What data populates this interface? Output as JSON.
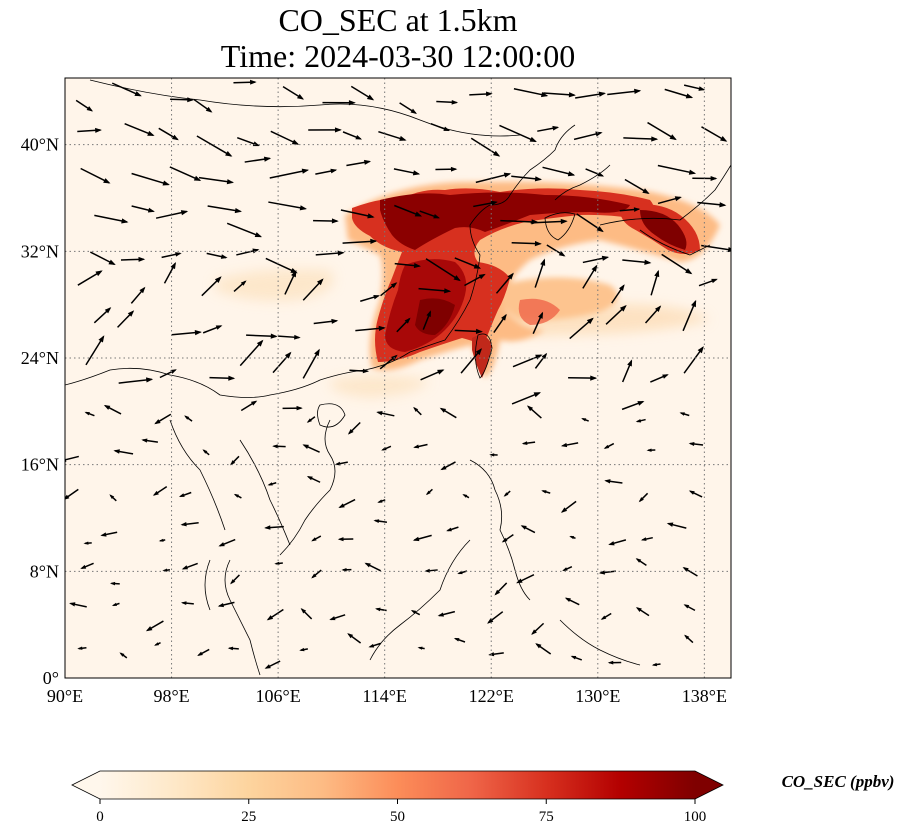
{
  "title": {
    "line1": "CO_SEC at 1.5km",
    "line2": "Time: 2024-03-30 12:00:00"
  },
  "map": {
    "lon_range": [
      90,
      140
    ],
    "lat_range": [
      0,
      45
    ],
    "lon_ticks": [
      90,
      98,
      106,
      114,
      122,
      130,
      138
    ],
    "lat_ticks": [
      0,
      8,
      16,
      24,
      32,
      40
    ],
    "lon_tick_labels": [
      "90°E",
      "98°E",
      "106°E",
      "114°E",
      "122°E",
      "130°E",
      "138°E"
    ],
    "lat_tick_labels": [
      "0°",
      "8°N",
      "16°N",
      "24°N",
      "32°N",
      "40°N"
    ],
    "gridlines": "dotted",
    "background_color": "#fff5ea",
    "coastline_color": "#000000"
  },
  "colorbar": {
    "label": "CO_SEC (ppbv)",
    "colormap": "OrRd",
    "range": [
      0,
      100
    ],
    "ticks": [
      0,
      25,
      50,
      75,
      100
    ],
    "tick_labels": [
      "0",
      "25",
      "50",
      "75",
      "100"
    ],
    "extend": "both",
    "colors": [
      "#fff7ec",
      "#fee8c8",
      "#fdd49e",
      "#fdbb84",
      "#fc8d59",
      "#ef6548",
      "#d7301f",
      "#b30000",
      "#7f0000"
    ]
  },
  "plumes": [
    {
      "lon_range": [
        110,
        132
      ],
      "lat_range": [
        32,
        37
      ],
      "value": 100
    },
    {
      "lon_range": [
        130,
        137
      ],
      "lat_range": [
        31,
        36
      ],
      "value": 80
    },
    {
      "lon_range": [
        112,
        120
      ],
      "lat_range": [
        26,
        32
      ],
      "value": 95
    },
    {
      "lon_range": [
        113,
        119
      ],
      "lat_range": [
        24,
        28
      ],
      "value": 85
    },
    {
      "lon_range": [
        118,
        130
      ],
      "lat_range": [
        25,
        29
      ],
      "value": 45
    },
    {
      "lon_range": [
        105,
        112
      ],
      "lat_range": [
        28,
        30
      ],
      "value": 15
    }
  ],
  "wind_field": "vector arrows (wind at 1.5km)"
}
